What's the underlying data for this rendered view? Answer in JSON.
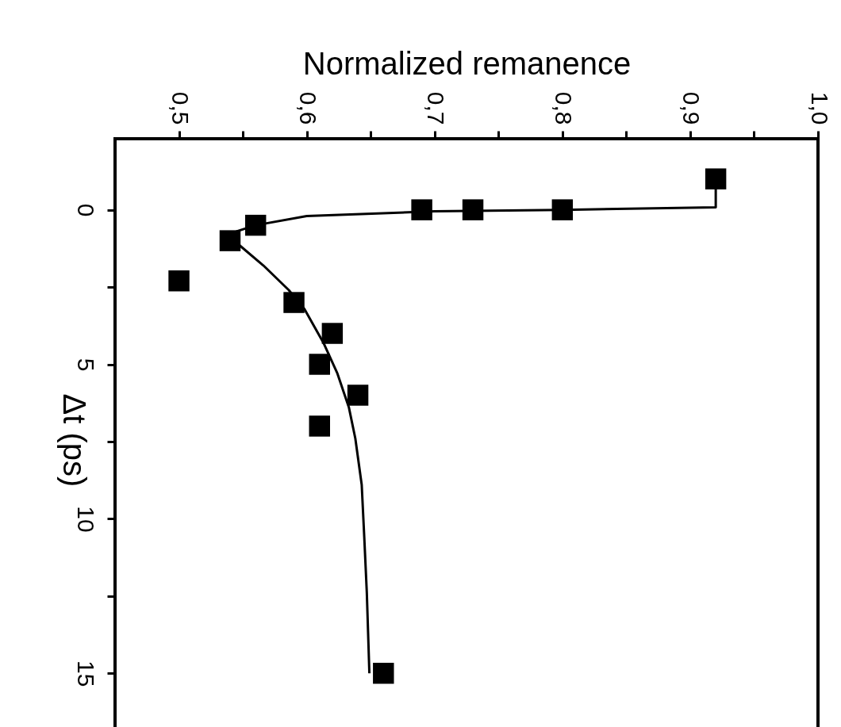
{
  "chart_data": {
    "type": "scatter",
    "xlabel": "Normalized remanence",
    "ylabel": "Δt (ps)",
    "xlim": [
      0.45,
      1.0
    ],
    "ylim": [
      17.2,
      -2.3
    ],
    "xticks": [
      {
        "value": 0.5,
        "label": "0,5"
      },
      {
        "value": 0.55,
        "label": null
      },
      {
        "value": 0.6,
        "label": "0,6"
      },
      {
        "value": 0.65,
        "label": null
      },
      {
        "value": 0.7,
        "label": "0,7"
      },
      {
        "value": 0.75,
        "label": null
      },
      {
        "value": 0.8,
        "label": "0,8"
      },
      {
        "value": 0.85,
        "label": null
      },
      {
        "value": 0.9,
        "label": "0,9"
      },
      {
        "value": 0.95,
        "label": null
      },
      {
        "value": 1.0,
        "label": "1,0"
      }
    ],
    "yticks": [
      0,
      {
        "value": 2.5,
        "label": null
      },
      5,
      {
        "value": 7.5,
        "label": null
      },
      10,
      {
        "value": 12.5,
        "label": null
      },
      15
    ],
    "series": [
      {
        "color": "#000000",
        "marker": "square",
        "x": [
          0.92,
          0.8,
          0.73,
          0.69,
          0.56,
          0.54,
          0.5,
          0.59,
          0.62,
          0.61,
          0.64,
          0.61,
          0.66
        ],
        "values": [
          -1.0,
          0.0,
          0.0,
          0.0,
          0.5,
          1.0,
          2.3,
          3.0,
          4.0,
          5.0,
          6.0,
          7.0,
          15.0
        ]
      },
      {
        "type": "line",
        "color": "#000000",
        "line_style": "solid",
        "x": [
          0.92,
          0.92,
          0.8,
          0.7,
          0.6,
          0.56,
          0.545,
          0.538,
          0.546,
          0.566,
          0.586,
          0.598,
          0.613,
          0.624,
          0.633,
          0.638,
          0.643,
          0.645,
          0.647,
          0.649
        ],
        "values": [
          -1.0,
          -0.08,
          0.0,
          0.05,
          0.2,
          0.5,
          0.7,
          1.0,
          1.1,
          1.8,
          2.6,
          3.2,
          4.3,
          5.3,
          6.4,
          7.4,
          8.9,
          10.6,
          12.4,
          15.0
        ]
      }
    ]
  }
}
